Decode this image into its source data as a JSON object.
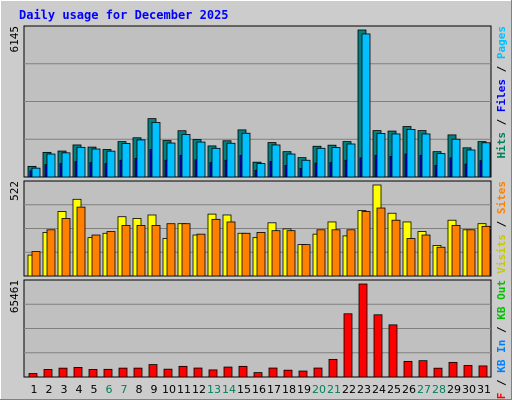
{
  "chart_data": {
    "type": "bar",
    "title": "Daily usage for December 2025",
    "categories": [
      "1",
      "2",
      "3",
      "4",
      "5",
      "6",
      "7",
      "8",
      "9",
      "10",
      "11",
      "12",
      "13",
      "14",
      "15",
      "16",
      "17",
      "18",
      "19",
      "20",
      "21",
      "22",
      "23",
      "24",
      "25",
      "26",
      "27",
      "28",
      "29",
      "30",
      "31"
    ],
    "weekend_days": [
      "6",
      "7",
      "13",
      "14",
      "20",
      "21",
      "27",
      "28"
    ],
    "panels": [
      {
        "max_label": "6145",
        "ylim": [
          0,
          6145
        ],
        "legend": [
          {
            "text": "Hits",
            "color": "#00805c"
          },
          {
            "text": "Files",
            "color": "#0000ff"
          },
          {
            "text": "Pages",
            "color": "#00c0ff"
          }
        ],
        "series": [
          {
            "name": "Hits",
            "color": "#008080",
            "values": [
              445,
              1030,
              1085,
              1340,
              1250,
              1150,
              1480,
              1640,
              2440,
              1525,
              1935,
              1565,
              1300,
              1515,
              1970,
              620,
              1440,
              1060,
              810,
              1285,
              1330,
              1480,
              6145,
              1940,
              1920,
              2110,
              1940,
              1060,
              1760,
              1220,
              1480
            ]
          },
          {
            "name": "Files",
            "color": "#0000ff",
            "values": [
              260,
              520,
              560,
              640,
              600,
              560,
              700,
              780,
              1150,
              700,
              900,
              720,
              600,
              700,
              900,
              280,
              650,
              480,
              360,
              580,
              600,
              700,
              800,
              900,
              860,
              960,
              900,
              480,
              800,
              540,
              680
            ]
          },
          {
            "name": "Pages",
            "color": "#00c0ff",
            "values": [
              370,
              960,
              1010,
              1240,
              1170,
              1080,
              1400,
              1550,
              2280,
              1420,
              1780,
              1460,
              1200,
              1410,
              1830,
              560,
              1340,
              960,
              700,
              1200,
              1230,
              1380,
              5980,
              1820,
              1800,
              1990,
              1800,
              980,
              1580,
              1130,
              1430
            ]
          }
        ]
      },
      {
        "max_label": "522",
        "ylim": [
          0,
          522
        ],
        "legend": [
          {
            "text": "Visits",
            "color": "#c8c800"
          },
          {
            "text": "Sites",
            "color": "#ff8000"
          }
        ],
        "series": [
          {
            "name": "Visits",
            "color": "#ffff00",
            "values": [
              120,
              250,
              370,
              440,
              220,
              245,
              340,
              330,
              350,
              215,
              300,
              235,
              355,
              350,
              245,
              220,
              305,
              270,
              180,
              240,
              310,
              230,
              375,
              522,
              360,
              310,
              255,
              175,
              320,
              265,
              300
            ]
          },
          {
            "name": "Sites",
            "color": "#ff8000",
            "values": [
              140,
              265,
              330,
              395,
              235,
              255,
              290,
              290,
              290,
              300,
              300,
              240,
              325,
              310,
              245,
              250,
              260,
              260,
              180,
              265,
              265,
              265,
              370,
              390,
              320,
              215,
              235,
              165,
              290,
              265,
              285
            ]
          }
        ]
      },
      {
        "max_label": "65461",
        "ylim": [
          0,
          65461
        ],
        "legend": [
          {
            "text": "KB F",
            "color": "#ff0000"
          },
          {
            "text": "KB In",
            "color": "#0080ff"
          },
          {
            "text": "KB Out",
            "color": "#00c000"
          }
        ],
        "series": [
          {
            "name": "KB F",
            "color": "#ff0000",
            "values": [
              2450,
              5300,
              6230,
              6750,
              5300,
              5400,
              6250,
              6250,
              8750,
              5500,
              7500,
              6300,
              5000,
              7000,
              7500,
              3100,
              6300,
              4800,
              4200,
              6300,
              12400,
              44500,
              65461,
              43800,
              36700,
              11000,
              11500,
              6200,
              10300,
              8100,
              7800
            ]
          }
        ]
      }
    ]
  }
}
